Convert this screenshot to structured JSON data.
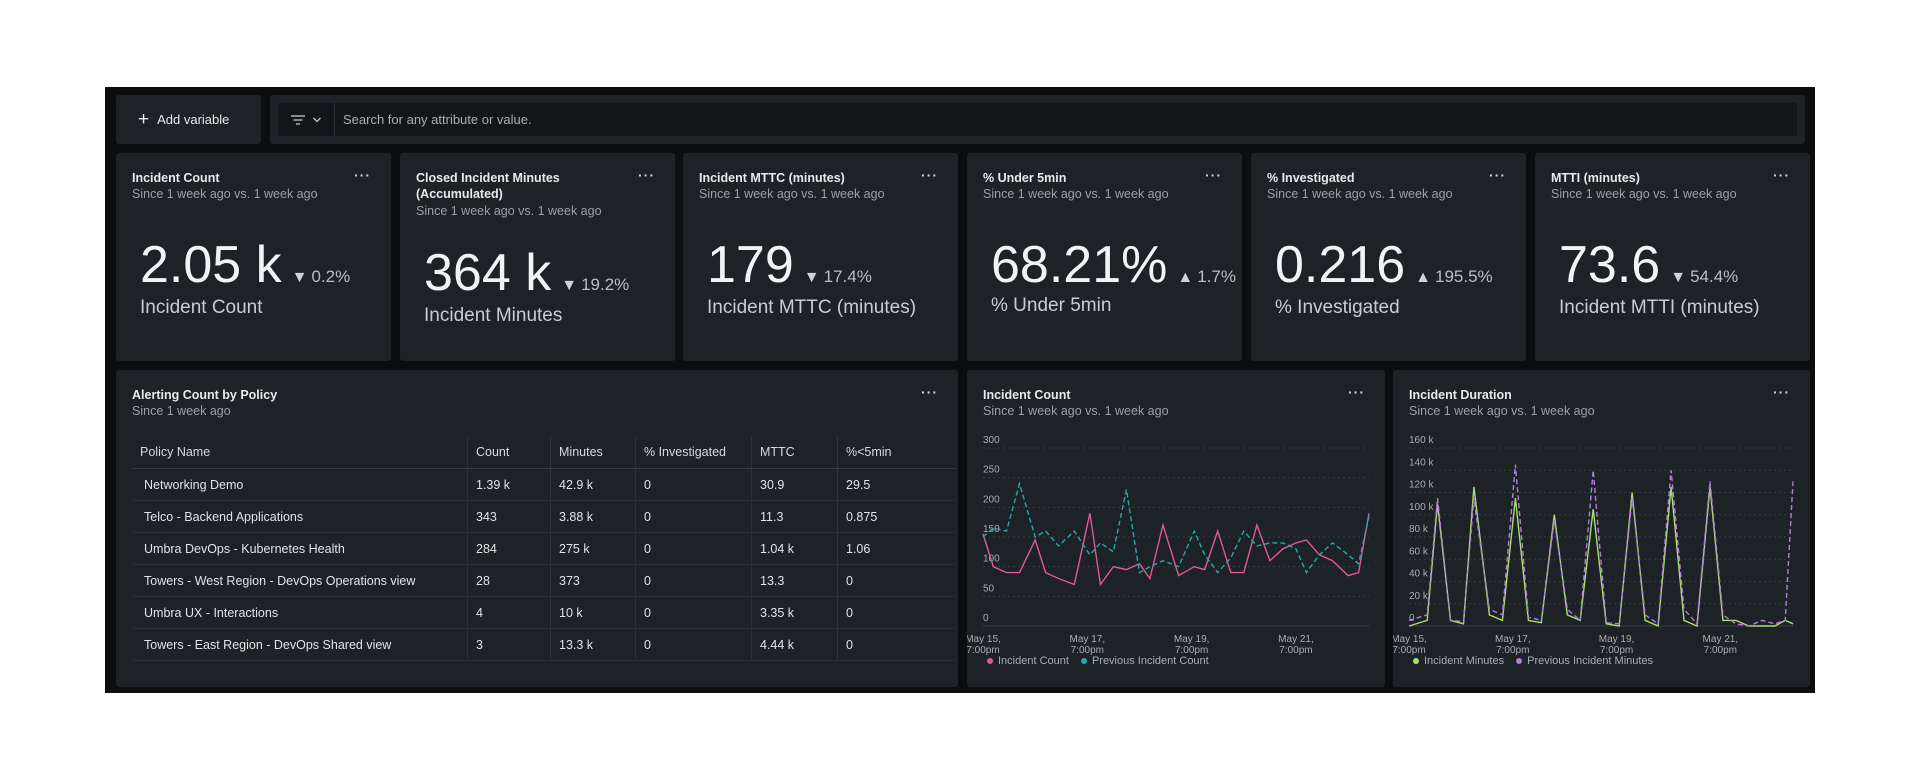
{
  "toolbar": {
    "add_variable_label": "Add variable",
    "search_placeholder": "Search for any attribute or value."
  },
  "billboards": [
    {
      "title": "Incident Count",
      "title2": "",
      "subtitle": "Since 1 week ago vs. 1 week ago",
      "value": "2.05 k",
      "direction": "down",
      "delta": "0.2%",
      "label": "Incident Count"
    },
    {
      "title": "Closed Incident Minutes",
      "title2": "(Accumulated)",
      "subtitle": "Since 1 week ago vs. 1 week ago",
      "value": "364 k",
      "direction": "down",
      "delta": "19.2%",
      "label": "Incident Minutes"
    },
    {
      "title": "Incident MTTC (minutes)",
      "title2": "",
      "subtitle": "Since 1 week ago vs. 1 week ago",
      "value": "179",
      "direction": "down",
      "delta": "17.4%",
      "label": "Incident MTTC (minutes)"
    },
    {
      "title": "% Under 5min",
      "title2": "",
      "subtitle": "Since 1 week ago vs. 1 week ago",
      "value": "68.21%",
      "direction": "up",
      "delta": "1.7%",
      "label": "% Under 5min"
    },
    {
      "title": "% Investigated",
      "title2": "",
      "subtitle": "Since 1 week ago vs. 1 week ago",
      "value": "0.216",
      "direction": "up",
      "delta": "195.5%",
      "label": "% Investigated"
    },
    {
      "title": "MTTI (minutes)",
      "title2": "",
      "subtitle": "Since 1 week ago vs. 1 week ago",
      "value": "73.6",
      "direction": "down",
      "delta": "54.4%",
      "label": "Incident MTTI (minutes)"
    }
  ],
  "policy_table": {
    "title": "Alerting Count by Policy",
    "subtitle": "Since 1 week ago",
    "columns": [
      "Policy Name",
      "Count",
      "Minutes",
      "% Investigated",
      "MTTC",
      "%<5min"
    ],
    "rows": [
      [
        "Networking Demo",
        "1.39 k",
        "42.9 k",
        "0",
        "30.9",
        "29.5"
      ],
      [
        "Telco - Backend Applications",
        "343",
        "3.88 k",
        "0",
        "11.3",
        "0.875"
      ],
      [
        "Umbra DevOps - Kubernetes Health",
        "284",
        "275 k",
        "0",
        "1.04 k",
        "1.06"
      ],
      [
        "Towers - West Region - DevOps Operations view",
        "28",
        "373",
        "0",
        "13.3",
        "0"
      ],
      [
        "Umbra UX - Interactions",
        "4",
        "10 k",
        "0",
        "3.35 k",
        "0"
      ],
      [
        "Towers - East Region - DevOps Shared view",
        "3",
        "13.3 k",
        "0",
        "4.44 k",
        "0"
      ]
    ]
  },
  "chart_data": [
    {
      "type": "line",
      "title": "Incident Count",
      "subtitle": "Since 1 week ago vs. 1 week ago",
      "ylim": [
        0,
        300
      ],
      "y_ticks": [
        "300",
        "250",
        "200",
        "150",
        "100",
        "50",
        "0"
      ],
      "x_ticks": [
        {
          "pos": 0,
          "line1": "May 15,",
          "line2": "7:00pm"
        },
        {
          "pos": 2,
          "line1": "May 17,",
          "line2": "7:00pm"
        },
        {
          "pos": 4,
          "line1": "May 19,",
          "line2": "7:00pm"
        },
        {
          "pos": 6,
          "line1": "May 21,",
          "line2": "7:00pm"
        }
      ],
      "x_range": [
        0,
        7.4
      ],
      "grid": true,
      "legend_position": "bottom-left",
      "series": [
        {
          "name": "Incident Count",
          "color": "#e0589b",
          "x": [
            0,
            0.2,
            0.45,
            0.7,
            1.0,
            1.2,
            1.45,
            1.75,
            2.05,
            2.25,
            2.5,
            2.75,
            3.0,
            3.2,
            3.45,
            3.75,
            4.05,
            4.25,
            4.5,
            4.75,
            5.0,
            5.25,
            5.5,
            5.75,
            6.0,
            6.2,
            6.45,
            6.7,
            7.0,
            7.2,
            7.4
          ],
          "values": [
            155,
            100,
            90,
            90,
            145,
            90,
            80,
            70,
            190,
            70,
            100,
            95,
            105,
            80,
            170,
            85,
            100,
            95,
            160,
            90,
            90,
            170,
            110,
            130,
            140,
            145,
            120,
            110,
            85,
            90,
            190
          ]
        },
        {
          "name": "Previous Incident Count",
          "color": "#2aa6b0",
          "x": [
            0,
            0.2,
            0.45,
            0.7,
            1.0,
            1.2,
            1.45,
            1.75,
            2.05,
            2.25,
            2.5,
            2.75,
            3.0,
            3.2,
            3.45,
            3.75,
            4.05,
            4.25,
            4.5,
            4.75,
            5.0,
            5.25,
            5.5,
            5.75,
            6.0,
            6.2,
            6.45,
            6.7,
            7.0,
            7.2,
            7.4
          ],
          "values": [
            150,
            165,
            160,
            240,
            150,
            160,
            135,
            160,
            120,
            140,
            125,
            230,
            90,
            100,
            110,
            100,
            160,
            120,
            90,
            115,
            160,
            135,
            140,
            140,
            130,
            90,
            120,
            140,
            120,
            105,
            185
          ]
        }
      ]
    },
    {
      "type": "line",
      "title": "Incident Duration",
      "subtitle": "Since 1 week ago vs. 1 week ago",
      "ylim": [
        0,
        160000
      ],
      "y_ticks": [
        "160 k",
        "140 k",
        "120 k",
        "100 k",
        "80 k",
        "60 k",
        "40 k",
        "20 k",
        "0"
      ],
      "x_ticks": [
        {
          "pos": 0,
          "line1": "May 15,",
          "line2": "7:00pm"
        },
        {
          "pos": 2,
          "line1": "May 17,",
          "line2": "7:00pm"
        },
        {
          "pos": 4,
          "line1": "May 19,",
          "line2": "7:00pm"
        },
        {
          "pos": 6,
          "line1": "May 21,",
          "line2": "7:00pm"
        }
      ],
      "x_range": [
        0,
        7.4
      ],
      "grid": true,
      "legend_position": "bottom-left",
      "series": [
        {
          "name": "Incident Minutes",
          "color": "#a8e06f",
          "x": [
            0,
            0.35,
            0.55,
            0.8,
            1.05,
            1.25,
            1.55,
            1.8,
            2.05,
            2.3,
            2.55,
            2.8,
            3.05,
            3.3,
            3.55,
            3.8,
            4.05,
            4.3,
            4.55,
            4.8,
            5.05,
            5.3,
            5.55,
            5.8,
            6.05,
            6.3,
            6.55,
            6.8,
            7.05,
            7.25,
            7.4
          ],
          "values": [
            0,
            5000,
            110000,
            5000,
            2000,
            125000,
            10000,
            5000,
            115000,
            5000,
            3000,
            100000,
            10000,
            5000,
            105000,
            2000,
            0,
            120000,
            5000,
            0,
            125000,
            5000,
            0,
            125000,
            5000,
            5000,
            0,
            0,
            0,
            5000,
            2000
          ]
        },
        {
          "name": "Previous Incident Minutes",
          "color": "#b57be0",
          "x": [
            0,
            0.35,
            0.55,
            0.8,
            1.05,
            1.25,
            1.55,
            1.8,
            2.05,
            2.3,
            2.55,
            2.8,
            3.05,
            3.3,
            3.55,
            3.8,
            4.05,
            4.3,
            4.55,
            4.8,
            5.05,
            5.3,
            5.55,
            5.8,
            6.05,
            6.3,
            6.55,
            6.8,
            7.05,
            7.25,
            7.4
          ],
          "values": [
            5000,
            10000,
            115000,
            5000,
            4000,
            115000,
            15000,
            10000,
            145000,
            8000,
            5000,
            95000,
            15000,
            5000,
            140000,
            3000,
            2000,
            115000,
            10000,
            2000,
            140000,
            15000,
            2000,
            130000,
            10000,
            2000,
            0,
            5000,
            2000,
            5000,
            130000
          ]
        }
      ]
    }
  ]
}
